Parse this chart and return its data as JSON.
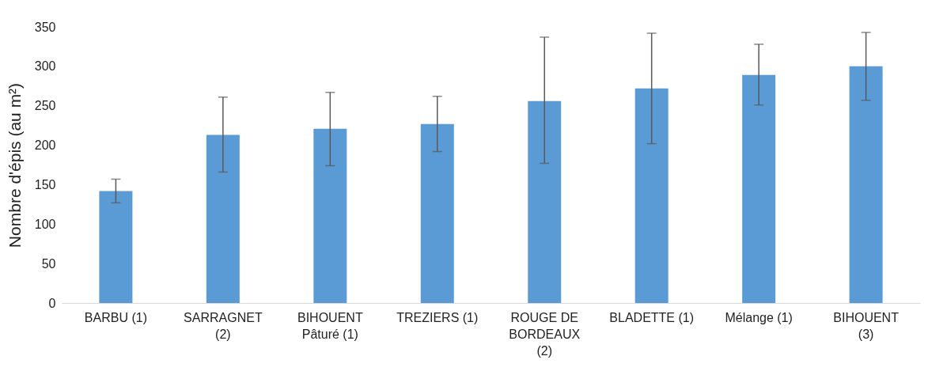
{
  "chart_data": {
    "type": "bar",
    "ylabel": "Nombre d'épis (au m²)",
    "categories": [
      "BARBU (1)",
      "SARRAGNET\n(2)",
      "BIHOUENT\nPâturé (1)",
      "TREZIERS (1)",
      "ROUGE DE\nBORDEAUX\n(2)",
      "BLADETTE (1)",
      "Mélange (1)",
      "BIHOUENT\n(3)"
    ],
    "values": [
      142,
      213,
      221,
      227,
      256,
      272,
      289,
      300
    ],
    "errors": [
      [
        127,
        157
      ],
      [
        166,
        261
      ],
      [
        174,
        267
      ],
      [
        192,
        262
      ],
      [
        177,
        337
      ],
      [
        202,
        342
      ],
      [
        251,
        328
      ],
      [
        257,
        343
      ]
    ],
    "color": "#5b9bd5",
    "ylim": [
      0,
      350
    ],
    "yticks": [
      0,
      50,
      100,
      150,
      200,
      250,
      300,
      350
    ],
    "grid": false
  }
}
